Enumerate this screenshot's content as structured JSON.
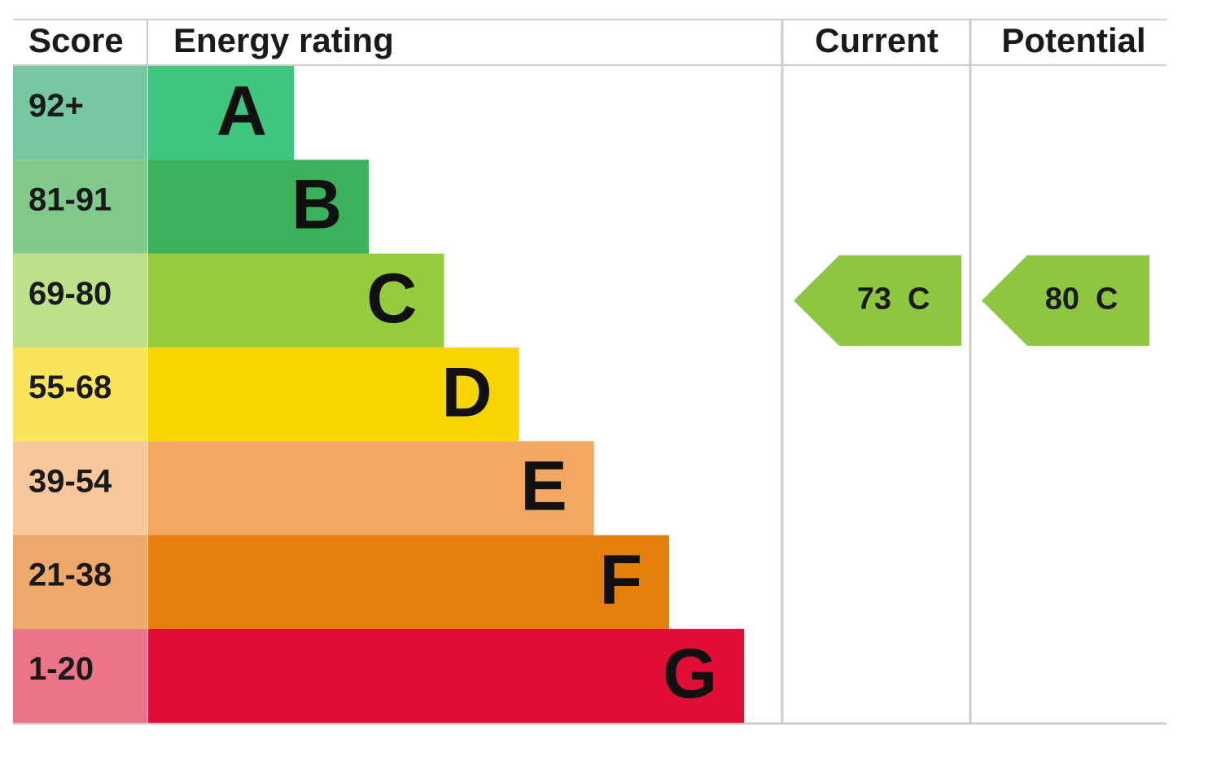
{
  "headers": [
    "Score",
    "Energy rating",
    "Current",
    "Potential"
  ],
  "bands": [
    {
      "score": "92+",
      "rating": "A",
      "color": "#3ec67e",
      "score_color": "#76c7a0"
    },
    {
      "score": "81-91",
      "rating": "B",
      "color": "#3ab15a",
      "score_color": "#80c98a"
    },
    {
      "score": "69-80",
      "rating": "C",
      "color": "#96cc3c",
      "score_color": "#bde08a"
    },
    {
      "score": "55-68",
      "rating": "D",
      "color": "#f7d500",
      "score_color": "#fbe45a"
    },
    {
      "score": "39-54",
      "rating": "E",
      "color": "#f3a862",
      "score_color": "#f6c79a"
    },
    {
      "score": "21-38",
      "rating": "F",
      "color": "#e57f0e",
      "score_color": "#eda86b"
    },
    {
      "score": "1-20",
      "rating": "G",
      "color": "#e00d36",
      "score_color": "#eb7487"
    }
  ],
  "current": {
    "value": 73,
    "rating": "C",
    "color": "#8dc63f"
  },
  "potential": {
    "value": 80,
    "rating": "C",
    "color": "#8dc63f"
  }
}
